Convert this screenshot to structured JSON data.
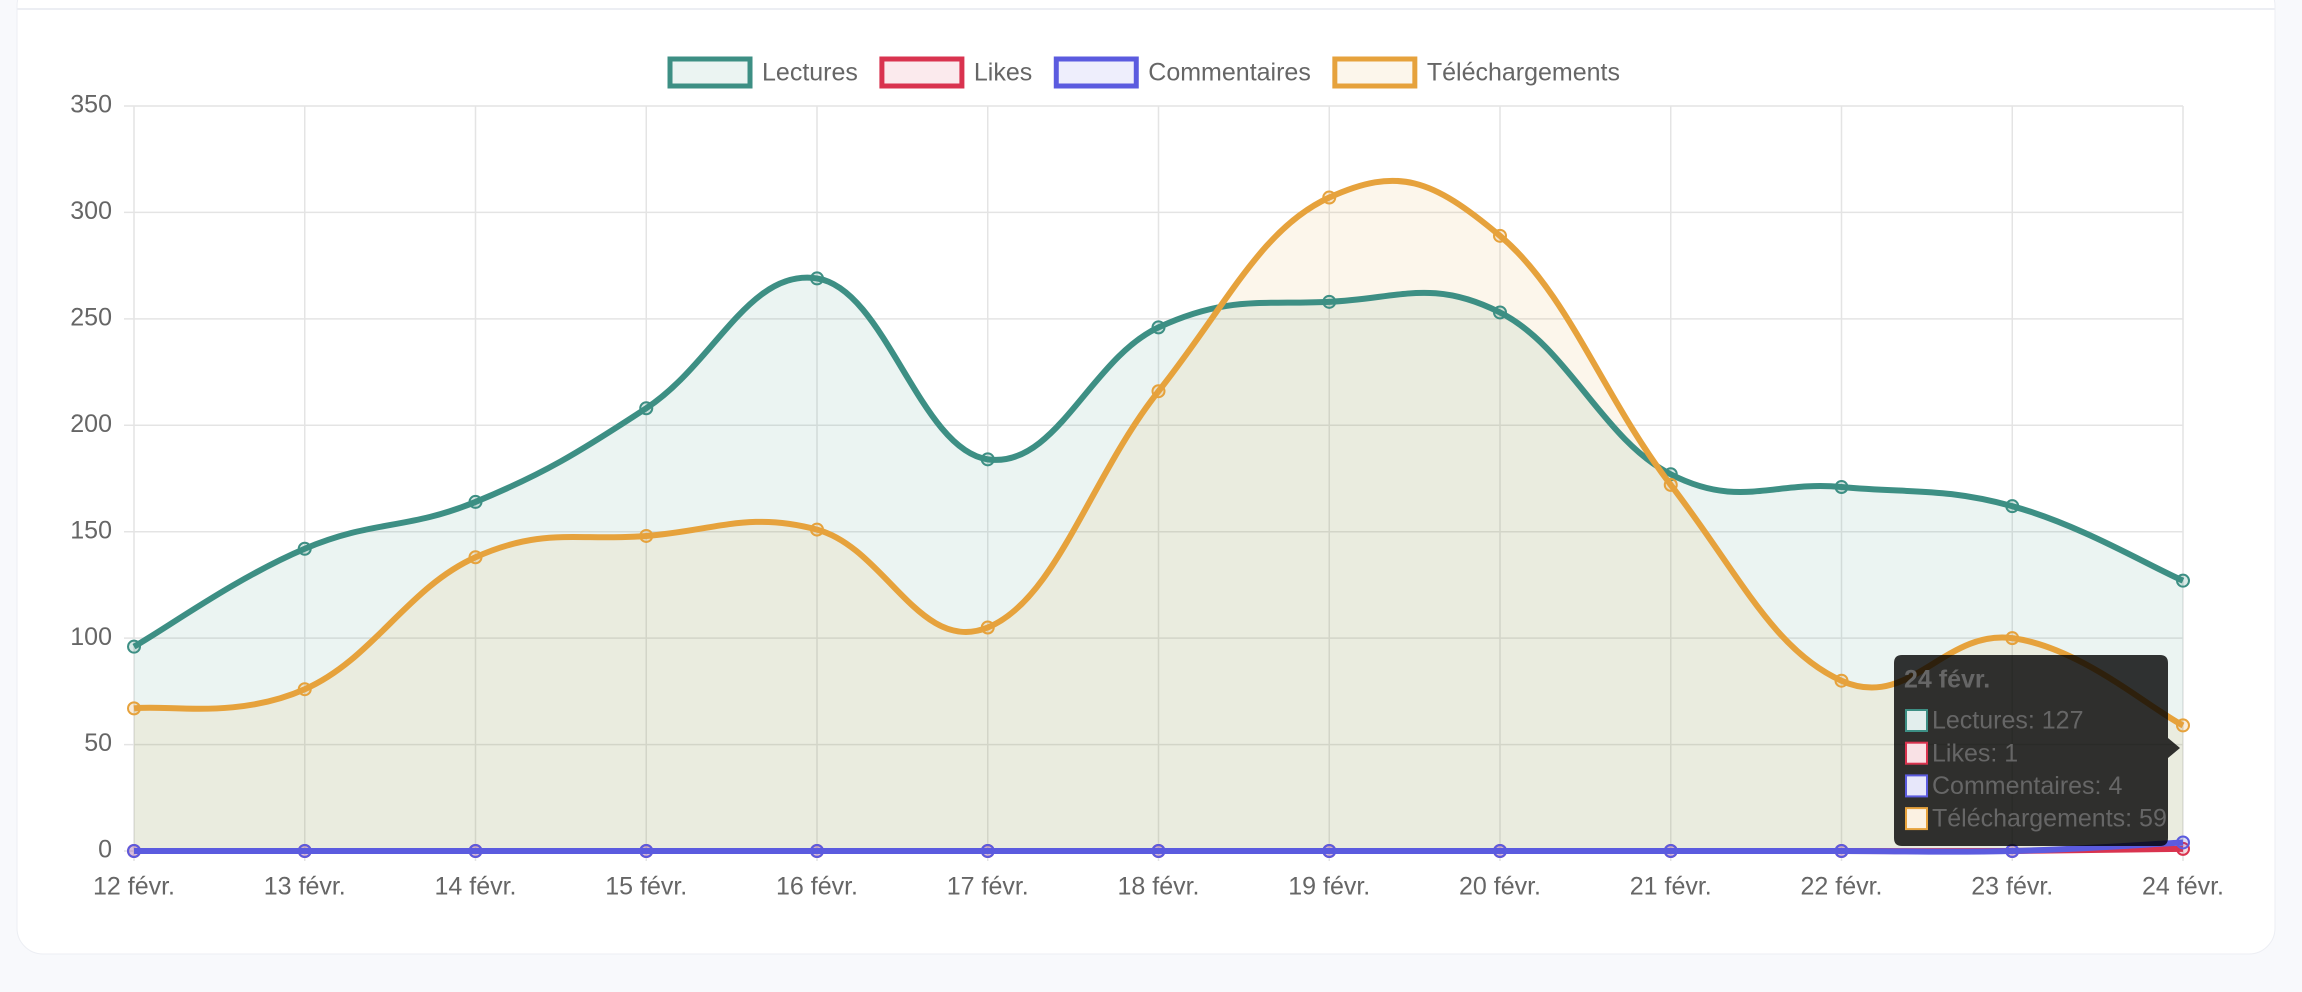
{
  "chart_data": {
    "type": "line",
    "categories": [
      "12 févr.",
      "13 févr.",
      "14 févr.",
      "15 févr.",
      "16 févr.",
      "17 févr.",
      "18 févr.",
      "19 févr.",
      "20 févr.",
      "21 févr.",
      "22 févr.",
      "23 févr.",
      "24 févr."
    ],
    "series": [
      {
        "name": "Lectures",
        "color": "#3d8f84",
        "values": [
          96,
          142,
          164,
          208,
          269,
          184,
          246,
          258,
          253,
          177,
          171,
          162,
          127
        ]
      },
      {
        "name": "Likes",
        "color": "#d9334f",
        "values": [
          0,
          0,
          0,
          0,
          0,
          0,
          0,
          0,
          0,
          0,
          0,
          0,
          1
        ]
      },
      {
        "name": "Commentaires",
        "color": "#5b5bdf",
        "values": [
          0,
          0,
          0,
          0,
          0,
          0,
          0,
          0,
          0,
          0,
          0,
          0,
          4
        ]
      },
      {
        "name": "Téléchargements",
        "color": "#e6a23c",
        "values": [
          67,
          76,
          138,
          148,
          151,
          105,
          216,
          307,
          289,
          172,
          80,
          100,
          59
        ]
      }
    ],
    "ylim": [
      0,
      350
    ],
    "yticks": [
      0,
      50,
      100,
      150,
      200,
      250,
      300,
      350
    ],
    "grid": true,
    "fill": true,
    "legend": "top",
    "tooltip": {
      "title": "24 févr.",
      "items": [
        "Lectures: 127",
        "Likes: 1",
        "Commentaires: 4",
        "Téléchargements: 59"
      ]
    }
  }
}
